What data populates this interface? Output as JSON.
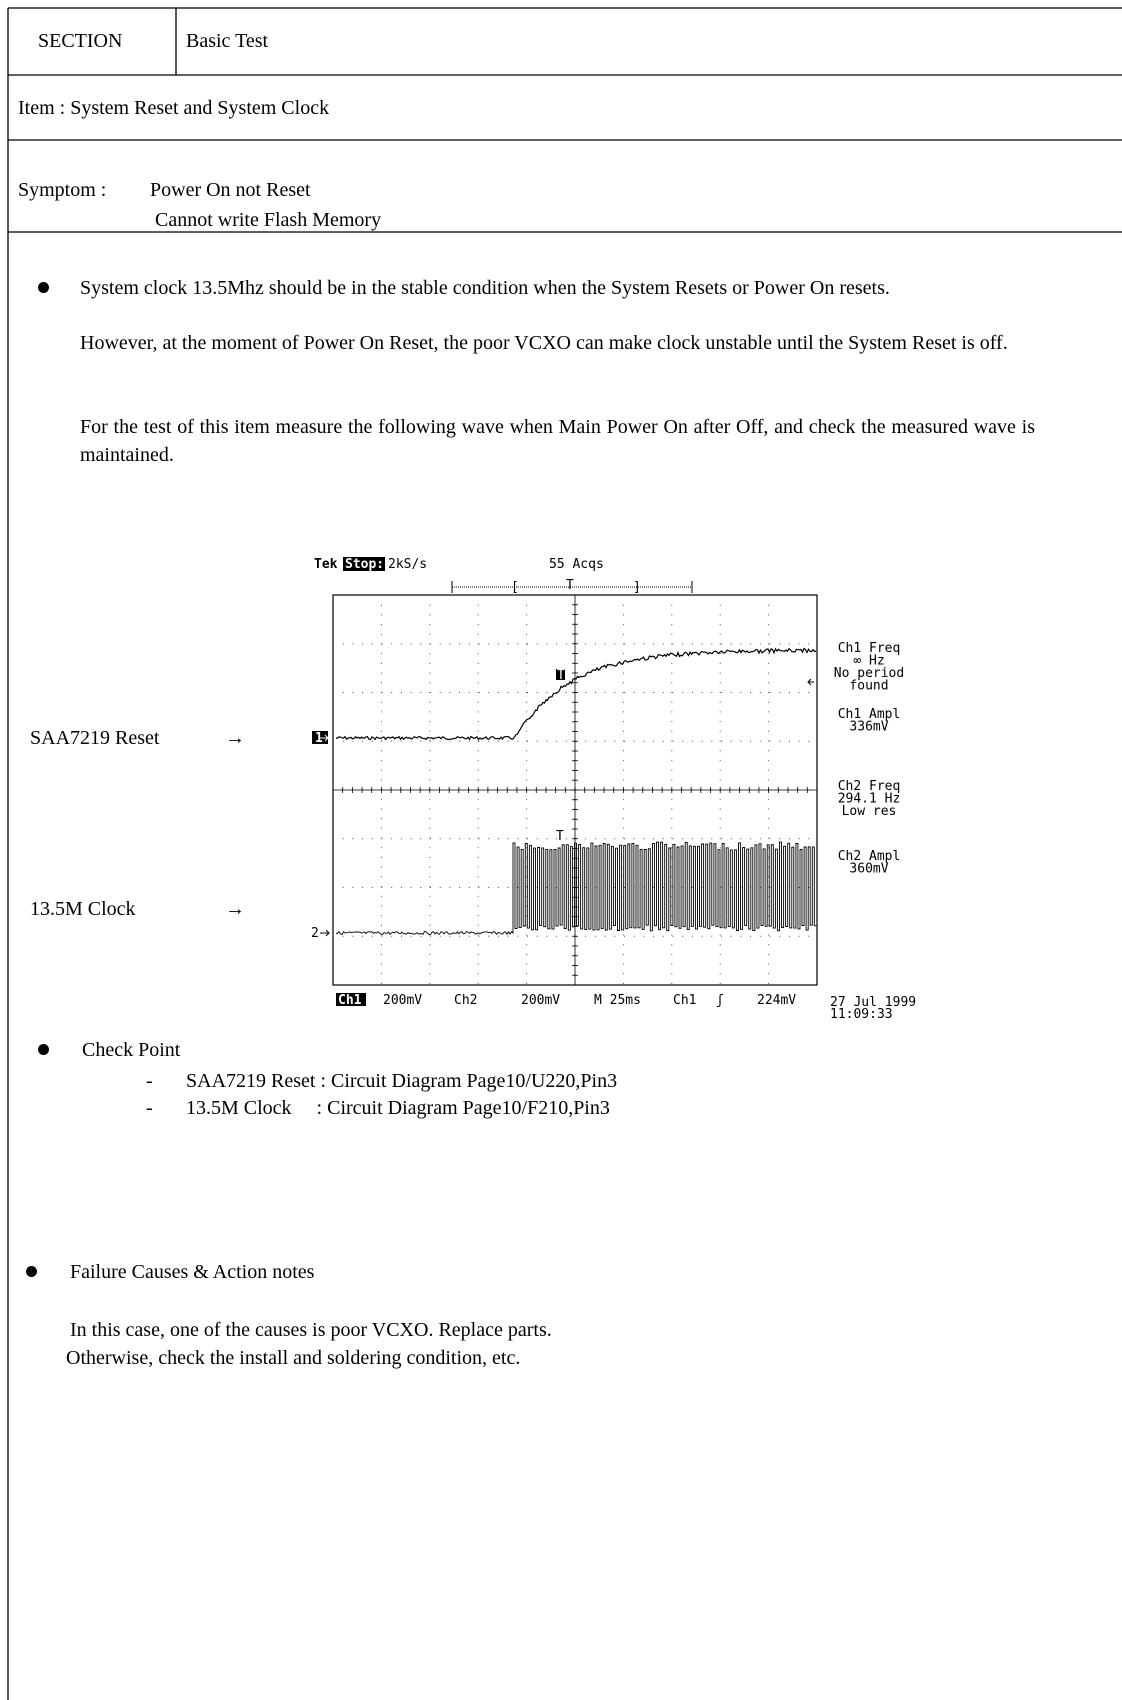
{
  "header": {
    "section_label": "SECTION",
    "section_value": "Basic Test"
  },
  "item": "Item : System Reset and System Clock",
  "symptom": {
    "label": "Symptom :",
    "lines": [
      "Power On not Reset",
      "Cannot write Flash Memory"
    ]
  },
  "description": {
    "paragraphs": [
      "System clock 13.5Mhz should be in the stable condition when the System Resets or Power On resets.",
      "However, at the moment of Power On Reset, the poor VCXO can make clock unstable until the System Reset is off.",
      "For the test of this item measure the following wave when Main Power On after Off, and check the measured wave is maintained."
    ]
  },
  "scope": {
    "brand": "Tek",
    "state": "Stop:",
    "rate": "2kS/s",
    "acqs": "55 Acqs",
    "trigger_bracket_open": "[",
    "trigger_marker": "T",
    "trigger_bracket_close": "]",
    "ch1_marker": "1",
    "ch2_marker": "2",
    "readouts": [
      [
        "Ch1 Freq",
        "∞ Hz",
        "No period",
        "found"
      ],
      [
        "Ch1 Ampl",
        "336mV"
      ],
      [
        "Ch2 Freq",
        "294.1 Hz",
        "Low res"
      ],
      [
        "Ch2 Ampl",
        "360mV"
      ]
    ],
    "bottom": {
      "ch1": "Ch1",
      "ch1_scale": "200mV",
      "ch2": "Ch2",
      "ch2_scale": "200mV",
      "time": "M 25ms",
      "trig_src": "Ch1",
      "slope": "ʃ",
      "trig_level": "224mV"
    },
    "date": "27 Jul 1999",
    "time": "11:09:33"
  },
  "signal_labels": [
    {
      "name": "SAA7219 Reset",
      "arrow": "→"
    },
    {
      "name": "13.5M Clock",
      "arrow": "→"
    }
  ],
  "check_point": {
    "title": "Check Point",
    "items": [
      {
        "marker": "-",
        "text": "SAA7219 Reset : Circuit Diagram Page10/U220,Pin3"
      },
      {
        "marker": "-",
        "text": "13.5M Clock     : Circuit Diagram Page10/F210,Pin3"
      }
    ]
  },
  "failure": {
    "title": "Failure Causes & Action notes",
    "lines": [
      "In this case, one of the causes is poor VCXO. Replace parts.",
      "Otherwise, check the install and soldering condition, etc."
    ]
  }
}
